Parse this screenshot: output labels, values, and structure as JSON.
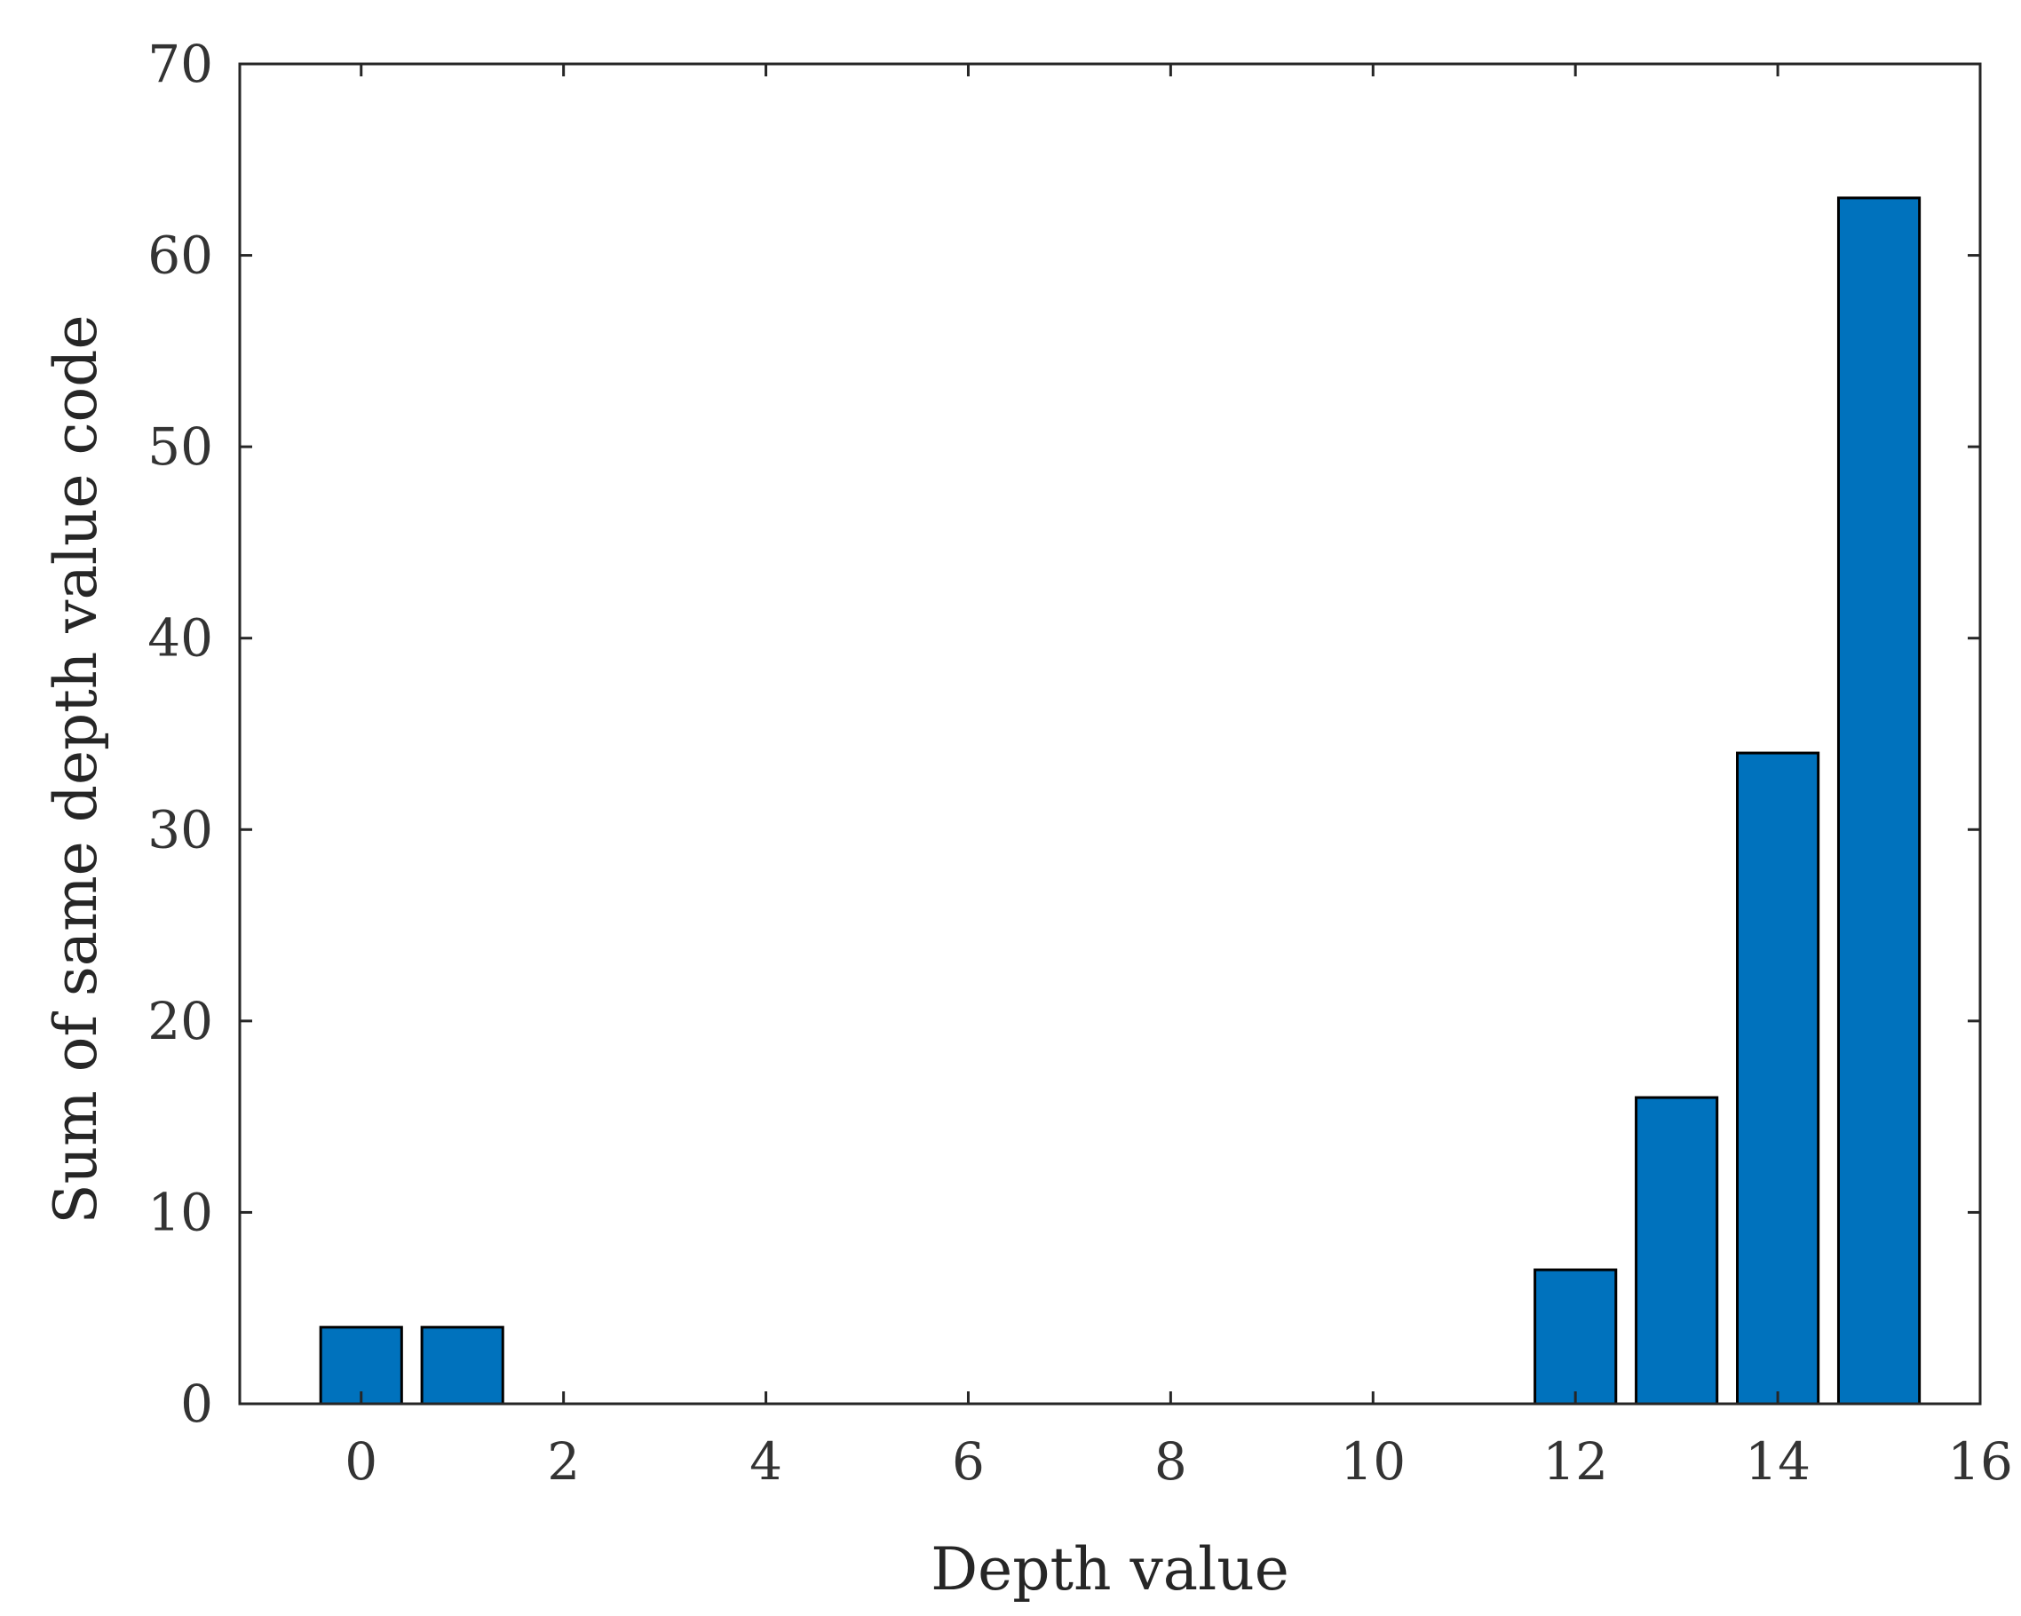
{
  "chart_data": {
    "type": "bar",
    "title": "",
    "xlabel": "Depth value",
    "ylabel": "Sum of same depth value code",
    "x": [
      0,
      1,
      12,
      13,
      14,
      15
    ],
    "values": [
      4,
      4,
      7,
      16,
      34,
      63
    ],
    "xlim": [
      -1.2,
      16
    ],
    "ylim": [
      0,
      70
    ],
    "xticks": [
      0,
      2,
      4,
      6,
      8,
      10,
      12,
      14,
      16
    ],
    "yticks": [
      0,
      10,
      20,
      30,
      40,
      50,
      60,
      70
    ],
    "bar_color": "#0072BD",
    "grid": false,
    "legend": "none"
  }
}
